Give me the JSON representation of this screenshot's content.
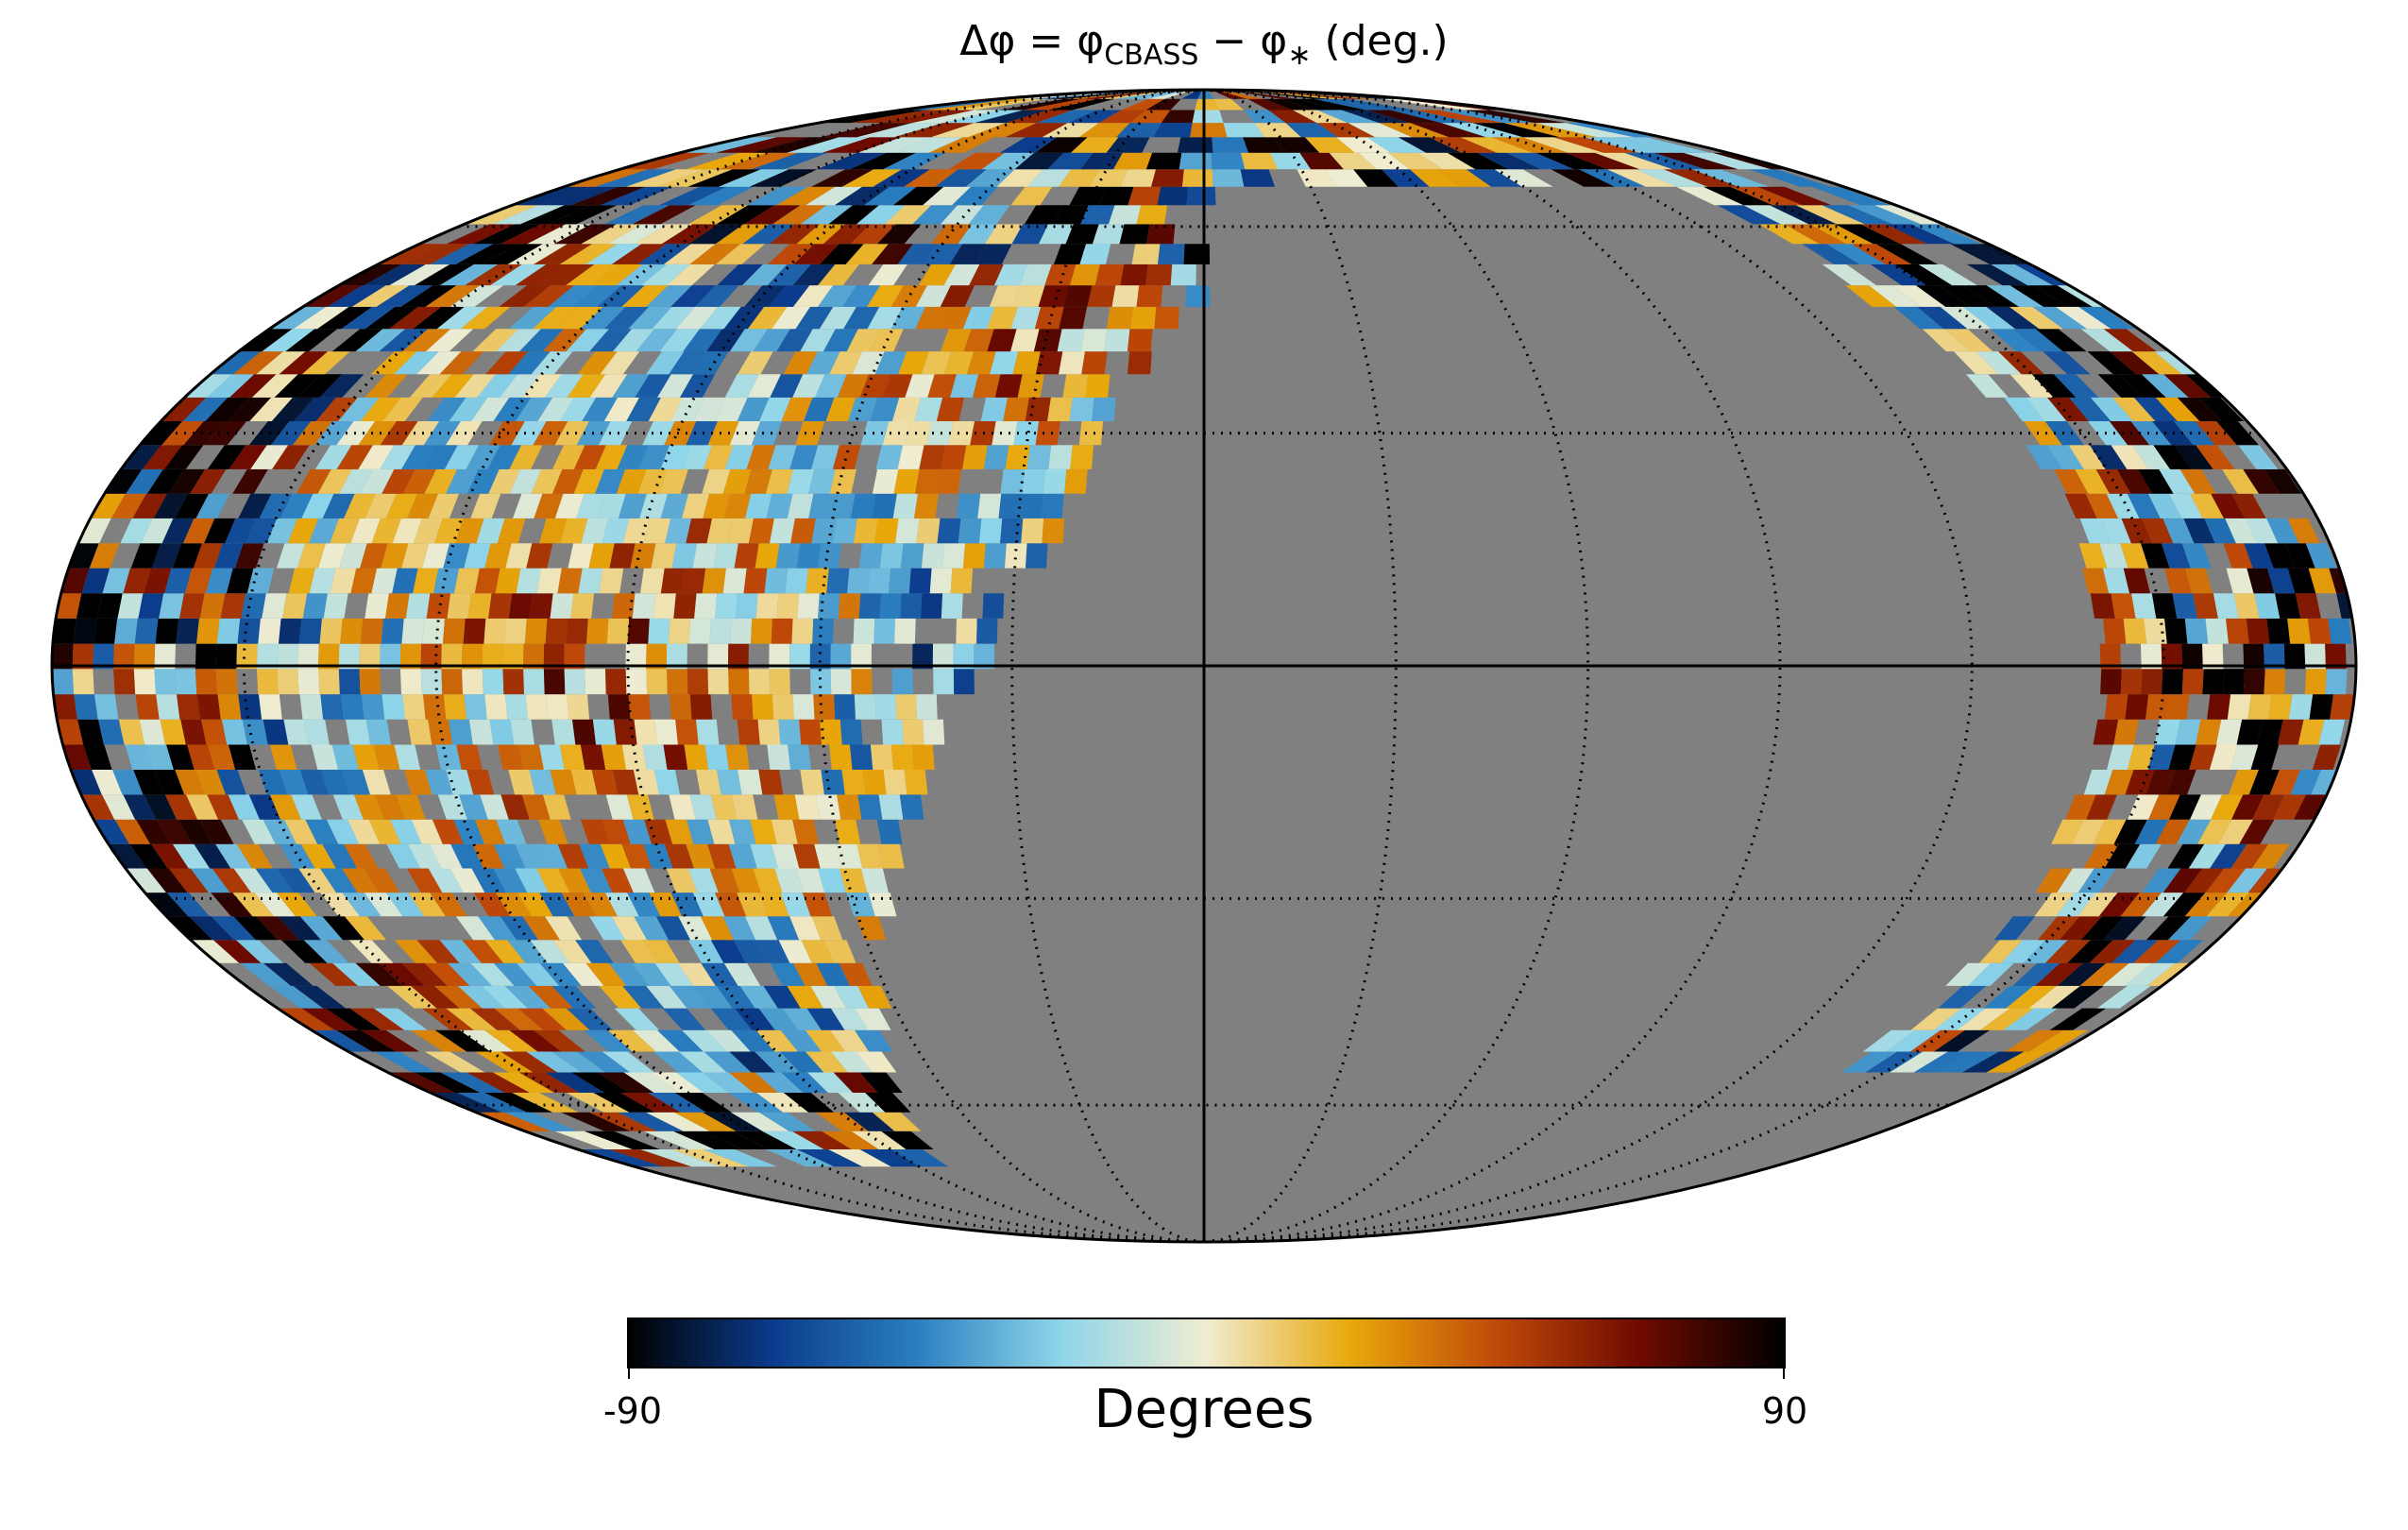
{
  "chart_data": {
    "type": "heatmap",
    "projection": "Mollweide",
    "title": "Δφ = φCBASS − φ∗ (deg.)",
    "title_parts": {
      "lhs": "Δφ = φ",
      "sub1": "CBASS",
      "mid": " − φ",
      "sub2": "∗",
      "rhs": " (deg.)"
    },
    "colorbar": {
      "label": "Degrees",
      "vmin": -90,
      "vmax": 90,
      "tick_labels": [
        "-90",
        "90"
      ],
      "colormap_stops": [
        "#000000",
        "#0b3b8c",
        "#2a7fc0",
        "#8fd6ea",
        "#f0ecd0",
        "#e8a80a",
        "#c04a08",
        "#6e0a00",
        "#000000"
      ]
    },
    "graticule": {
      "latitudes_deg": [
        -60,
        -30,
        0,
        30,
        60
      ],
      "longitudes_deg": [
        -150,
        -120,
        -90,
        -60,
        -30,
        0,
        30,
        60,
        90,
        120,
        150
      ],
      "style": "dotted",
      "axes_solid": true
    },
    "masked_color": "#808080",
    "grid": false,
    "legend": "none"
  }
}
